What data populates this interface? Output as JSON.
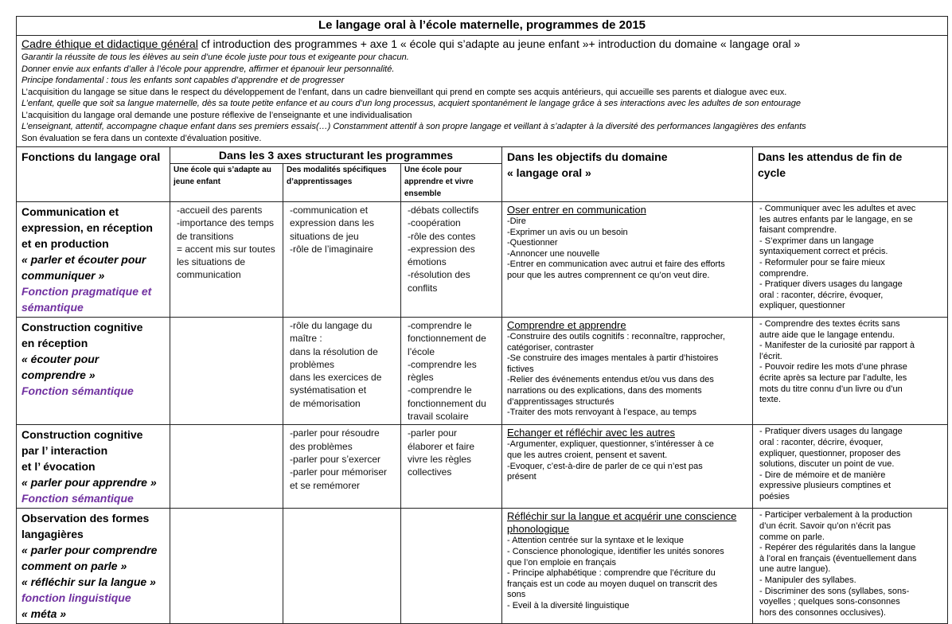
{
  "title": "Le langage oral à l’école maternelle,  programmes de 2015",
  "intro": {
    "head_underlined": "Cadre éthique et didactique général",
    "head_rest": " cf introduction des programmes  +  axe 1 « école qui s’adapte au jeune enfant »+ introduction du domaine « langage oral »",
    "lines": [
      {
        "text": "Garantir la réussite de tous les élèves au sein d’une école juste pour tous et exigeante pour chacun.",
        "italic": true
      },
      {
        "text": "Donner envie aux enfants d’aller à l’école pour apprendre, affirmer et épanouir leur personnalité.",
        "italic": true
      },
      {
        "text": "Principe fondamental : tous les enfants sont capables d’apprendre et de progresser",
        "italic": true
      },
      {
        "text": "L’acquisition du langage se situe dans le respect du développement de l’enfant, dans un cadre bienveillant qui prend en compte ses acquis antérieurs, qui accueille ses parents et dialogue avec eux.",
        "italic": false
      },
      {
        "text": " L’enfant, quelle que soit sa langue maternelle, dès sa toute petite enfance et au cours d’un long processus, acquiert spontanément le langage grâce à ses interactions avec les adultes de son entourage",
        "italic": true
      },
      {
        "text": "L’acquisition du langage oral demande une posture réflexive de l’enseignante et une individualisation",
        "italic": false
      },
      {
        "text": "L’enseignant, attentif, accompagne chaque enfant dans ses premiers essais(…) Constamment attentif à son propre langage et veillant à s’adapter à la diversité des performances langagières des enfants",
        "italic": true
      },
      {
        "text": "Son évaluation se fera dans un contexte d’évaluation positive.",
        "italic": false
      }
    ]
  },
  "headers": {
    "functions": "Fonctions du langage oral",
    "axes": "Dans les 3 axes structurant les programmes",
    "axis1": "Une école qui s’adapte au jeune enfant",
    "axis2": "Des modalités spécifiques d’apprentissages",
    "axis3": "Une école pour apprendre et  vivre ensemble",
    "objectives_l1": "Dans les objectifs du  domaine",
    "objectives_l2": "« langage oral »",
    "expected_l1": "Dans les attendus de fin de",
    "expected_l2": "cycle"
  },
  "rows": [
    {
      "function": [
        "Communication et",
        "expression, en réception",
        "et en production"
      ],
      "quote": [
        "« parler et écouter pour",
        "communiquer »"
      ],
      "purple": [
        "Fonction pragmatique et",
        "sémantique"
      ],
      "axis1": [
        "-accueil des parents",
        "-importance des temps",
        "de transitions",
        "= accent mis sur toutes",
        "les situations de",
        "communication"
      ],
      "axis2": [
        "-communication et",
        "expression dans les",
        "situations de jeu",
        "-rôle de l’imaginaire"
      ],
      "axis3": [
        "-débats collectifs",
        "-coopération",
        "-rôle des contes",
        "-expression des",
        "émotions",
        "-résolution des",
        "conflits"
      ],
      "objective_title": [
        "Oser entrer en communication"
      ],
      "objective": [
        "-Dire",
        "-Exprimer un avis ou un besoin",
        "-Questionner",
        "-Annoncer une nouvelle",
        "-Entrer en communication avec autrui et faire des efforts",
        "pour que les autres comprennent ce qu’on veut dire."
      ],
      "expected": [
        "- Communiquer avec les adultes et avec",
        "les autres enfants par le langage, en se",
        "faisant comprendre.",
        "- S’exprimer dans un langage",
        "syntaxiquement correct et précis.",
        "- Reformuler pour se faire mieux",
        "comprendre.",
        "- Pratiquer divers usages du langage",
        "oral : raconter, décrire, évoquer,",
        "expliquer, questionner"
      ]
    },
    {
      "function": [
        "Construction cognitive",
        "en réception"
      ],
      "quote": [
        "« écouter pour",
        "comprendre »"
      ],
      "purple": [
        "Fonction sémantique"
      ],
      "axis1": [],
      "axis2": [
        "-rôle du langage du",
        "maître :",
        "dans la résolution de",
        "problèmes",
        "dans les exercices de",
        "systématisation et",
        "de mémorisation"
      ],
      "axis3": [
        "-comprendre le",
        "fonctionnement de",
        "l’école",
        "-comprendre les",
        "règles",
        "-comprendre le",
        "fonctionnement du",
        "travail scolaire"
      ],
      "objective_title": [
        "Comprendre et apprendre"
      ],
      "objective": [
        "-Construire des outils cognitifs : reconnaître, rapprocher,",
        "catégoriser, contraster",
        "-Se construire des images mentales à partir d’histoires",
        "fictives",
        "-Relier des événements entendus et/ou vus dans des",
        "narrations ou des explications, dans des moments",
        "d’apprentissages structurés",
        "-Traiter des mots renvoyant à l’espace, au temps"
      ],
      "expected": [
        "- Comprendre des textes écrits sans",
        "autre aide que le langage entendu.",
        "- Manifester de la curiosité par rapport à",
        "l’écrit.",
        "- Pouvoir redire les mots d’une phrase",
        "écrite après sa lecture par l’adulte, les",
        "mots du titre connu d’un livre ou d’un",
        "texte."
      ]
    },
    {
      "function": [
        "Construction cognitive",
        "par l’ interaction",
        "et l’ évocation"
      ],
      "quote": [
        "« parler pour apprendre »"
      ],
      "purple": [
        "Fonction sémantique"
      ],
      "axis1": [],
      "axis2": [
        "-parler pour résoudre",
        "des problèmes",
        "-parler pour s’exercer",
        "-parler pour mémoriser",
        "et se remémorer"
      ],
      "axis3": [
        "-parler pour",
        "élaborer et faire",
        "vivre les règles",
        "collectives"
      ],
      "objective_title": [
        "Echanger et réfléchir avec les autres"
      ],
      "objective": [
        "-Argumenter, expliquer, questionner, s’intéresser à ce",
        "que les autres croient, pensent et savent.",
        "-Evoquer, c’est-à-dire de parler de ce qui n’est pas",
        "présent"
      ],
      "expected": [
        "- Pratiquer divers usages du langage",
        "oral : raconter, décrire, évoquer,",
        "expliquer, questionner, proposer des",
        "solutions, discuter un point de vue.",
        "- Dire de mémoire et de manière",
        "expressive plusieurs comptines et",
        "poésies"
      ]
    },
    {
      "function": [
        "Observation des formes",
        "langagières"
      ],
      "quote": [
        "« parler pour comprendre",
        "comment on parle »",
        "« réfléchir sur la langue »"
      ],
      "purple": [
        "fonction linguistique"
      ],
      "quote2": [
        "« méta »"
      ],
      "axis1": [],
      "axis2": [],
      "axis3": [],
      "objective_title": [
        "Réfléchir sur la langue et acquérir une conscience",
        "phonologique"
      ],
      "objective": [
        "- Attention centrée sur la syntaxe et le lexique",
        "- Conscience phonologique, identifier les unités sonores",
        "que l’on emploie en français",
        "- Principe alphabétique : comprendre que l’écriture du",
        "français est un code au moyen duquel on transcrit des",
        "sons",
        "- Eveil à la diversité linguistique"
      ],
      "expected": [
        "- Participer verbalement à la production",
        "d’un écrit. Savoir qu’on n’écrit pas",
        "comme on parle.",
        "- Repérer des régularités dans la langue",
        "à l’oral en français (éventuellement dans",
        "une autre langue).",
        "- Manipuler des syllabes.",
        "- Discriminer des sons (syllabes, sons-",
        "voyelles ; quelques sons-consonnes",
        "hors des consonnes occlusives)."
      ]
    }
  ],
  "colors": {
    "purple_function": "#7030a0",
    "border": "#222222"
  }
}
